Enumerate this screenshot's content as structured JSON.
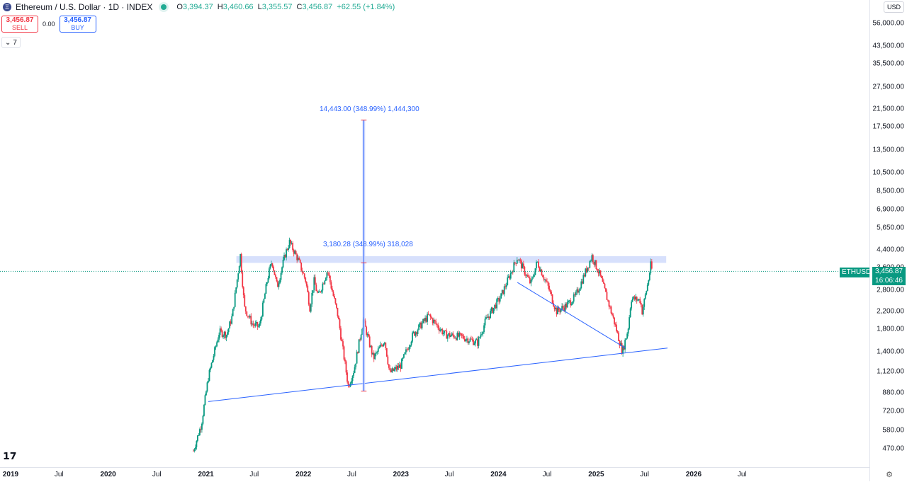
{
  "header": {
    "coin_glyph": "Ξ",
    "title": "Ethereum / U.S. Dollar · 1D · INDEX",
    "ohlc": [
      {
        "k": "O",
        "v": "3,394.37"
      },
      {
        "k": "H",
        "v": "3,460.66"
      },
      {
        "k": "L",
        "v": "3,355.57"
      },
      {
        "k": "C",
        "v": "3,456.87"
      },
      {
        "k": "",
        "v": "+62.55 (+1.84%)"
      }
    ]
  },
  "trade": {
    "sell_price": "3,456.87",
    "sell_label": "SELL",
    "spread": "0.00",
    "buy_price": "3,456.87",
    "buy_label": "BUY"
  },
  "indicators_toggle": {
    "count": "7"
  },
  "currency": "USD",
  "symbol_tag": "ETHUSD",
  "price_label": {
    "price": "3,456.87",
    "countdown": "16:06:46"
  },
  "measures": {
    "upper": "14,443.00 (348.99%) 1,444,300",
    "lower": "3,180.28 (348.99%) 318,028"
  },
  "colors": {
    "up": "#089981",
    "down": "#f23645",
    "drawing": "#2962ff",
    "band": "#c9d5fb"
  },
  "chart_data": {
    "type": "candlestick",
    "title": "Ethereum / U.S. Dollar · 1D · INDEX",
    "y_scale": "log",
    "ylim": [
      420,
      70000
    ],
    "y_ticks": [
      "56,000.00",
      "43,500.00",
      "35,500.00",
      "27,500.00",
      "21,500.00",
      "17,500.00",
      "13,500.00",
      "10,500.00",
      "8,500.00",
      "6,900.00",
      "5,650.00",
      "4,400.00",
      "3,600.00",
      "2,800.00",
      "2,200.00",
      "1,800.00",
      "1,400.00",
      "1,120.00",
      "880.00",
      "720.00",
      "580.00",
      "470.00"
    ],
    "x_ticks": [
      "2019",
      "Jul",
      "2020",
      "Jul",
      "2021",
      "Jul",
      "2022",
      "Jul",
      "2023",
      "Jul",
      "2024",
      "Jul",
      "2025",
      "Jul",
      "2026",
      "Jul"
    ],
    "x_year_ticks": [
      "2019",
      "2020",
      "2021",
      "2022",
      "2023",
      "2024",
      "2025",
      "2026"
    ],
    "price_path": [
      [
        "2020-11-15",
        460
      ],
      [
        "2020-12-15",
        620
      ],
      [
        "2021-01-10",
        1050
      ],
      [
        "2021-02-20",
        1750
      ],
      [
        "2021-03-20",
        1700
      ],
      [
        "2021-04-10",
        2100
      ],
      [
        "2021-05-10",
        4150
      ],
      [
        "2021-05-25",
        2300
      ],
      [
        "2021-06-25",
        1900
      ],
      [
        "2021-07-20",
        1850
      ],
      [
        "2021-08-20",
        3200
      ],
      [
        "2021-09-05",
        3900
      ],
      [
        "2021-09-25",
        2900
      ],
      [
        "2021-10-25",
        4200
      ],
      [
        "2021-11-10",
        4800
      ],
      [
        "2021-12-10",
        4000
      ],
      [
        "2022-01-10",
        3100
      ],
      [
        "2022-01-25",
        2300
      ],
      [
        "2022-02-10",
        3100
      ],
      [
        "2022-02-25",
        2600
      ],
      [
        "2022-04-01",
        3500
      ],
      [
        "2022-05-10",
        2100
      ],
      [
        "2022-06-18",
        950
      ],
      [
        "2022-07-10",
        1150
      ],
      [
        "2022-08-13",
        2000
      ],
      [
        "2022-09-20",
        1300
      ],
      [
        "2022-11-01",
        1600
      ],
      [
        "2022-11-20",
        1100
      ],
      [
        "2022-12-31",
        1200
      ],
      [
        "2023-02-15",
        1700
      ],
      [
        "2023-04-15",
        2100
      ],
      [
        "2023-06-15",
        1700
      ],
      [
        "2023-08-20",
        1650
      ],
      [
        "2023-10-15",
        1550
      ],
      [
        "2023-11-15",
        2000
      ],
      [
        "2024-01-10",
        2600
      ],
      [
        "2024-03-12",
        4050
      ],
      [
        "2024-05-01",
        3000
      ],
      [
        "2024-05-25",
        3850
      ],
      [
        "2024-07-05",
        2900
      ],
      [
        "2024-08-05",
        2200
      ],
      [
        "2024-09-10",
        2350
      ],
      [
        "2024-10-15",
        2600
      ],
      [
        "2024-12-16",
        4100
      ],
      [
        "2025-01-15",
        3300
      ],
      [
        "2025-02-05",
        2700
      ],
      [
        "2025-03-10",
        1950
      ],
      [
        "2025-04-09",
        1400
      ],
      [
        "2025-04-30",
        1800
      ],
      [
        "2025-05-12",
        2550
      ],
      [
        "2025-06-15",
        2500
      ],
      [
        "2025-06-22",
        2200
      ],
      [
        "2025-07-15",
        3100
      ],
      [
        "2025-07-24",
        3700
      ],
      [
        "2025-07-30",
        3456.87
      ]
    ],
    "current_price": 3456.87,
    "drawings": {
      "support_line": [
        [
          "2021-01-10",
          800
        ],
        [
          "2025-09-25",
          1460
        ]
      ],
      "descending_line": [
        [
          "2024-03-12",
          3050
        ],
        [
          "2025-04-20",
          1460
        ]
      ],
      "resistance_band": {
        "from": "2021-04-25",
        "to": "2025-09-20",
        "low": 3800,
        "high": 4100
      },
      "measure_bar": {
        "from": "2022-08-10",
        "to": "2022-08-20",
        "low": 900,
        "high": 18900
      }
    }
  }
}
